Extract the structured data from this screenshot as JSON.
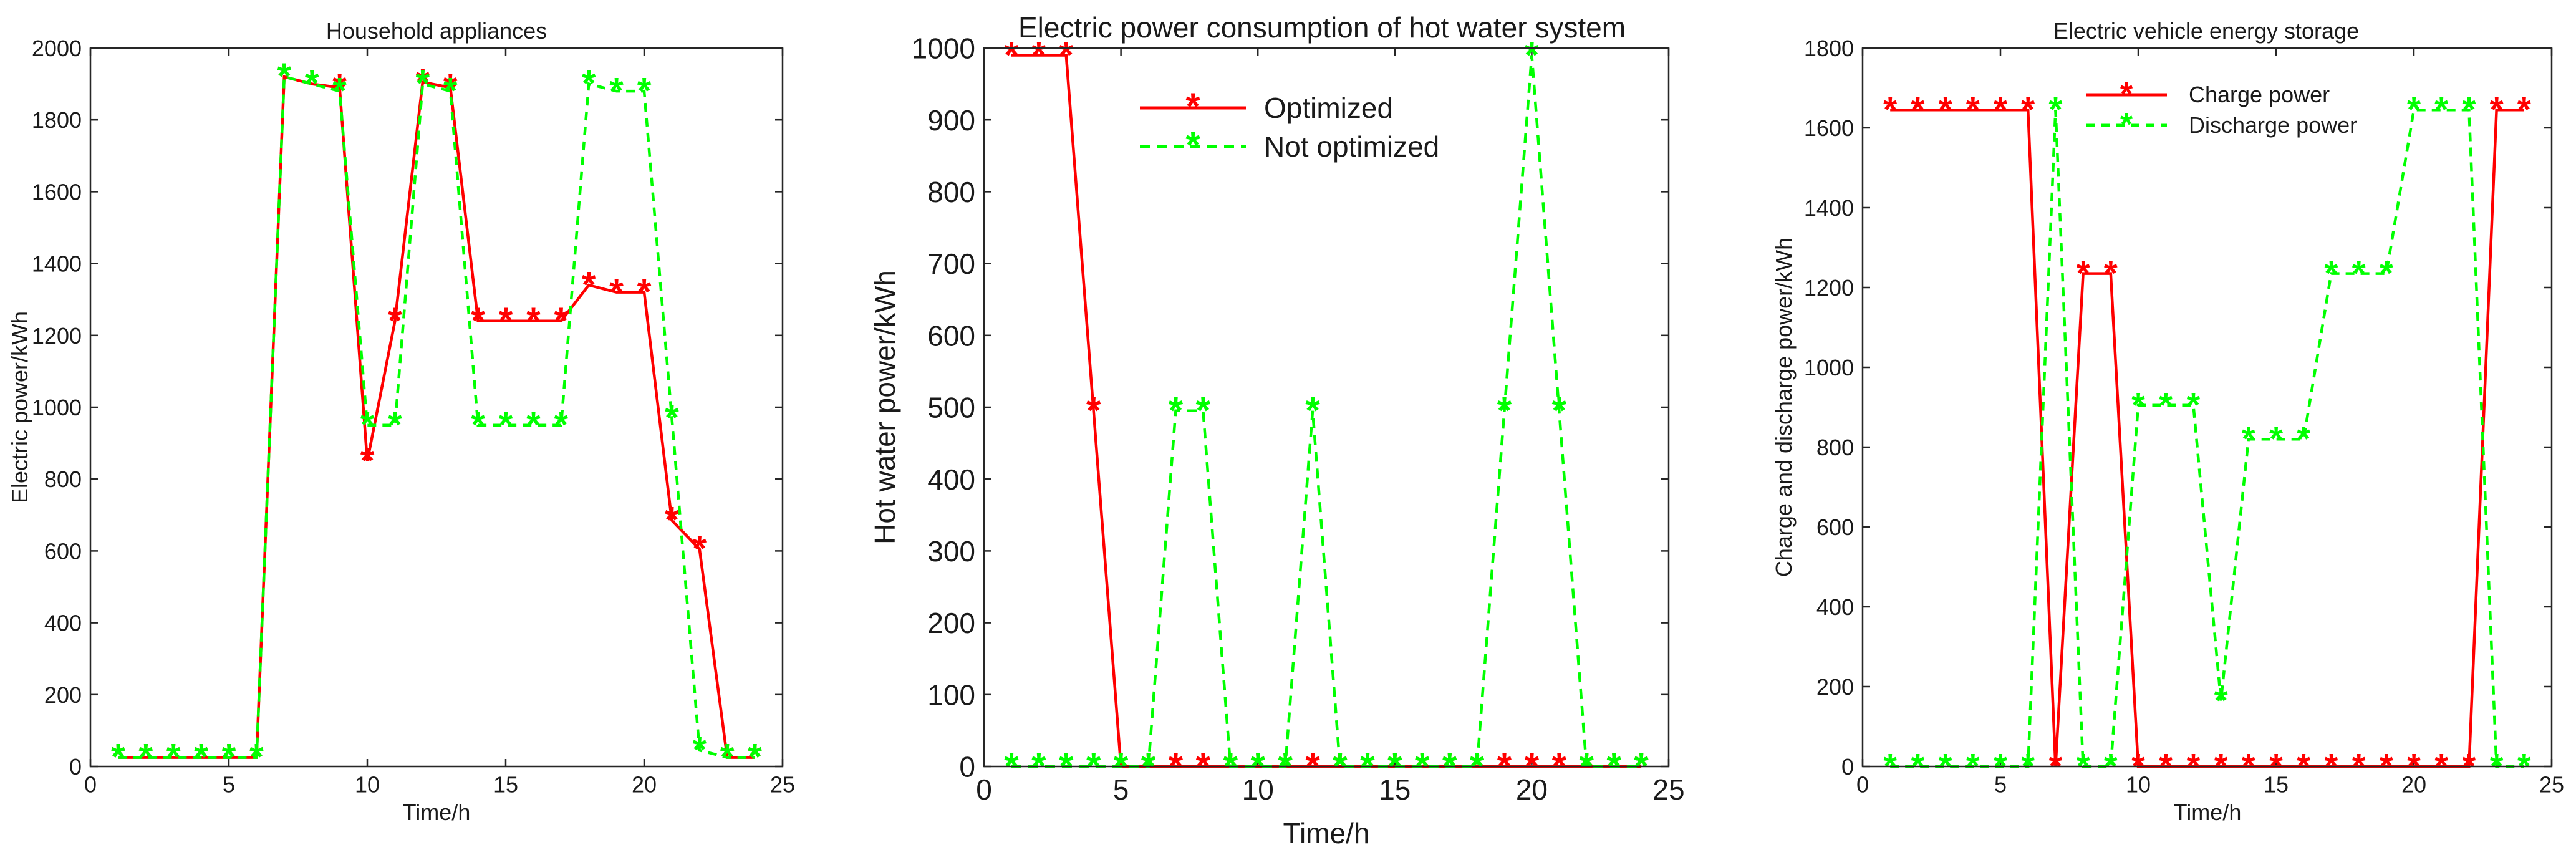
{
  "colors": {
    "optimized": "#ff0000",
    "not_optimized": "#00ff00",
    "axis": "#262626",
    "text": "#1a1a1a"
  },
  "chart_data": [
    {
      "type": "line",
      "title": "Household appliances",
      "xlabel": "Time/h",
      "ylabel": "Electric power/kWh",
      "xlim": [
        0,
        25
      ],
      "ylim": [
        0,
        2000
      ],
      "xticks": [
        0,
        5,
        10,
        15,
        20,
        25
      ],
      "yticks": [
        0,
        200,
        400,
        600,
        800,
        1000,
        1200,
        1400,
        1600,
        1800,
        2000
      ],
      "legend": null,
      "series": [
        {
          "name": "Optimized",
          "style": "solid",
          "color": "#ff0000",
          "x": [
            1,
            2,
            3,
            4,
            5,
            6,
            7,
            8,
            9,
            10,
            11,
            12,
            13,
            14,
            15,
            16,
            17,
            18,
            19,
            20,
            21,
            22,
            23,
            24
          ],
          "y": [
            25,
            25,
            25,
            25,
            25,
            25,
            1920,
            1900,
            1890,
            850,
            1240,
            1905,
            1890,
            1240,
            1240,
            1240,
            1240,
            1340,
            1320,
            1320,
            685,
            605,
            25,
            25
          ]
        },
        {
          "name": "Not optimized",
          "style": "dashed",
          "color": "#00ff00",
          "x": [
            1,
            2,
            3,
            4,
            5,
            6,
            7,
            8,
            9,
            10,
            11,
            12,
            13,
            14,
            15,
            16,
            17,
            18,
            19,
            20,
            21,
            22,
            23,
            24
          ],
          "y": [
            25,
            25,
            25,
            25,
            25,
            25,
            1920,
            1900,
            1880,
            950,
            950,
            1900,
            1880,
            950,
            950,
            950,
            950,
            1900,
            1880,
            1880,
            970,
            45,
            25,
            25
          ]
        }
      ]
    },
    {
      "type": "line",
      "title": "Electric power consumption of hot water system",
      "xlabel": "Time/h",
      "ylabel": "Hot water power/kWh",
      "xlim": [
        0,
        25
      ],
      "ylim": [
        0,
        1000
      ],
      "xticks": [
        0,
        5,
        10,
        15,
        20,
        25
      ],
      "yticks": [
        0,
        100,
        200,
        300,
        400,
        500,
        600,
        700,
        800,
        900,
        1000
      ],
      "legend": "top-center",
      "series": [
        {
          "name": "Optimized",
          "style": "solid",
          "color": "#ff0000",
          "x": [
            1,
            2,
            3,
            4,
            5,
            6,
            7,
            8,
            9,
            10,
            11,
            12,
            13,
            14,
            15,
            16,
            17,
            18,
            19,
            20,
            21,
            22,
            23,
            24
          ],
          "y": [
            990,
            990,
            990,
            495,
            0,
            0,
            0,
            0,
            0,
            0,
            0,
            0,
            0,
            0,
            0,
            0,
            0,
            0,
            0,
            0,
            0,
            0,
            0,
            0
          ]
        },
        {
          "name": "Not optimized",
          "style": "dashed",
          "color": "#00ff00",
          "x": [
            1,
            2,
            3,
            4,
            5,
            6,
            7,
            8,
            9,
            10,
            11,
            12,
            13,
            14,
            15,
            16,
            17,
            18,
            19,
            20,
            21,
            22,
            23,
            24
          ],
          "y": [
            0,
            0,
            0,
            0,
            0,
            0,
            495,
            495,
            0,
            0,
            0,
            495,
            0,
            0,
            0,
            0,
            0,
            0,
            495,
            990,
            495,
            0,
            0,
            0
          ]
        }
      ]
    },
    {
      "type": "line",
      "title": "Electric vehicle energy storage",
      "xlabel": "Time/h",
      "ylabel": "Charge and discharge power/kWh",
      "xlim": [
        0,
        25
      ],
      "ylim": [
        0,
        1800
      ],
      "xticks": [
        0,
        5,
        10,
        15,
        20,
        25
      ],
      "yticks": [
        0,
        200,
        400,
        600,
        800,
        1000,
        1200,
        1400,
        1600,
        1800
      ],
      "legend": "top-center",
      "series": [
        {
          "name": "Charge power",
          "style": "solid",
          "color": "#ff0000",
          "x": [
            1,
            2,
            3,
            4,
            5,
            6,
            7,
            8,
            9,
            10,
            11,
            12,
            13,
            14,
            15,
            16,
            17,
            18,
            19,
            20,
            21,
            22,
            23,
            24
          ],
          "y": [
            1645,
            1645,
            1645,
            1645,
            1645,
            1645,
            0,
            1235,
            1235,
            0,
            0,
            0,
            0,
            0,
            0,
            0,
            0,
            0,
            0,
            0,
            0,
            0,
            1645,
            1645
          ]
        },
        {
          "name": "Discharge power",
          "style": "dashed",
          "color": "#00ff00",
          "x": [
            1,
            2,
            3,
            4,
            5,
            6,
            7,
            8,
            9,
            10,
            11,
            12,
            13,
            14,
            15,
            16,
            17,
            18,
            19,
            20,
            21,
            22,
            23,
            24
          ],
          "y": [
            0,
            0,
            0,
            0,
            0,
            0,
            1645,
            0,
            0,
            905,
            905,
            905,
            165,
            820,
            820,
            820,
            1235,
            1235,
            1235,
            1645,
            1645,
            1645,
            0,
            0
          ]
        }
      ]
    }
  ]
}
